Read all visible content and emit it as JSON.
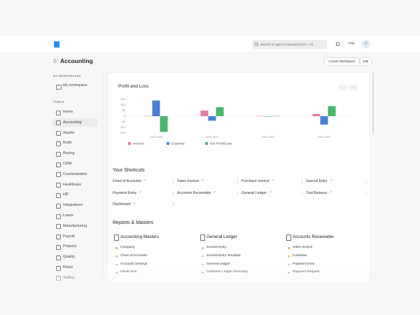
{
  "navbar": {
    "search_placeholder": "Search or type a command (Ctrl + G)",
    "help": "Help",
    "avatar": "P"
  },
  "header": {
    "title": "Accounting",
    "buttons": [
      "Create Workspace",
      "Edit"
    ]
  },
  "sidebar": {
    "my_workspaces_label": "MY WORKSPACES",
    "my_workspaces": [
      "My workspace"
    ],
    "public_label": "PUBLIC",
    "public": [
      "Home",
      "Accounting",
      "Assets",
      "Build",
      "Buying",
      "CRM",
      "Customization",
      "Healthcare",
      "HR",
      "Integrations",
      "Loans",
      "Manufacturing",
      "Payroll",
      "Projects",
      "Quality",
      "Retail",
      "Selling"
    ],
    "active": 1
  },
  "chart_data": {
    "type": "bar",
    "title": "Profit and Loss",
    "categories": [
      "2019-2020",
      "2020-2021",
      "2021-2022",
      "2022-2023"
    ],
    "series": [
      {
        "name": "Income",
        "color": "#e7799c",
        "values": [
          0.3,
          5,
          0.3,
          2
        ]
      },
      {
        "name": "Expense",
        "color": "#4a80d3",
        "values": [
          14,
          -4,
          -0.3,
          -7.5
        ]
      },
      {
        "name": "Net Profit/Loss",
        "color": "#4bb46c",
        "values": [
          -14,
          8,
          0.2,
          9
        ]
      }
    ],
    "ylim": [
      -15,
      15
    ],
    "yticks": [
      {
        "value": 15,
        "label": "$15"
      },
      {
        "value": 10,
        "label": "$10"
      },
      {
        "value": 5,
        "label": "$5"
      },
      0,
      {
        "value": -5,
        "label": "-$5"
      },
      {
        "value": -10,
        "label": "-$10"
      },
      {
        "value": -15,
        "label": "-$15"
      }
    ],
    "legend": "bottom-left"
  },
  "shortcuts": {
    "title": "Your Shortcuts",
    "items": [
      "Chart of Accounts",
      "Sales Invoice",
      "Purchase Invoice",
      "Journal Entry",
      "Payment Entry",
      "Accounts Receivable",
      "General Ledger",
      "Trial Balance",
      "Dashboard"
    ]
  },
  "reports": {
    "title": "Reports & Masters",
    "cards": [
      {
        "title": "Accounting Masters",
        "links": [
          {
            "label": "Company",
            "dot": "#f5a34a"
          },
          {
            "label": "Chart of Accounts",
            "dot": "#f5a34a"
          },
          {
            "label": "Accounts Settings",
            "dot": "#b8bcc2"
          },
          {
            "label": "Fiscal Year",
            "dot": "#b8bcc2"
          }
        ]
      },
      {
        "title": "General Ledger",
        "links": [
          {
            "label": "Journal Entry",
            "dot": "#b8bcc2"
          },
          {
            "label": "Journal Entry Template",
            "dot": "#b8bcc2"
          },
          {
            "label": "General Ledger",
            "dot": "#b8bcc2"
          },
          {
            "label": "Customer Ledger Summary",
            "dot": "#b8bcc2"
          }
        ]
      },
      {
        "title": "Accounts Receivable",
        "links": [
          {
            "label": "Sales Invoice",
            "dot": "#f5a34a"
          },
          {
            "label": "Customer",
            "dot": "#f5a34a"
          },
          {
            "label": "Payment Entry",
            "dot": "#b8bcc2"
          },
          {
            "label": "Payment Request",
            "dot": "#b8bcc2"
          }
        ]
      }
    ]
  }
}
